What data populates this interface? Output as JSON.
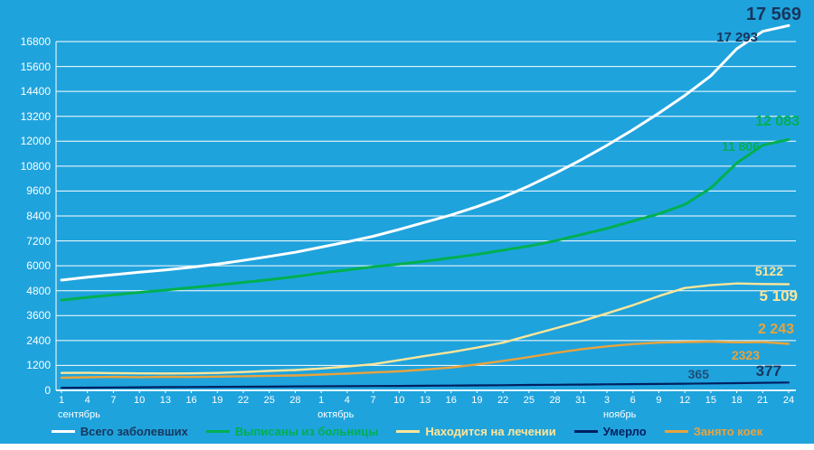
{
  "chart_data": {
    "type": "line",
    "title": "",
    "xlabel": "",
    "ylabel": "",
    "grid": "horizontal",
    "legend_position": "bottom",
    "ylim": [
      0,
      18000
    ],
    "y_ticks": [
      0,
      1200,
      2400,
      3600,
      4800,
      6000,
      7200,
      8400,
      9600,
      10800,
      12000,
      13200,
      14400,
      15600,
      16800
    ],
    "x_tick_labels": [
      "1",
      "4",
      "7",
      "10",
      "13",
      "16",
      "19",
      "22",
      "25",
      "28",
      "1",
      "4",
      "7",
      "10",
      "13",
      "16",
      "19",
      "22",
      "25",
      "28",
      "31",
      "3",
      "6",
      "9",
      "12",
      "15",
      "18",
      "21",
      "24"
    ],
    "month_labels": [
      {
        "label": "сентябрь",
        "start_index": 0
      },
      {
        "label": "октябрь",
        "start_index": 10
      },
      {
        "label": "ноябрь",
        "start_index": 21
      }
    ],
    "colors": {
      "background": "#1FA3DD",
      "grid": "#FFFFFF",
      "axis_text": "#FFFFFF"
    },
    "series": [
      {
        "name": "Всего заболевших",
        "color": "#FFFFFF",
        "legend_text_color": "#17365D",
        "values": [
          5310,
          5450,
          5570,
          5690,
          5800,
          5930,
          6080,
          6260,
          6450,
          6650,
          6900,
          7150,
          7420,
          7750,
          8100,
          8450,
          8850,
          9300,
          9850,
          10450,
          11100,
          11800,
          12550,
          13350,
          14200,
          15150,
          16450,
          17293,
          17569
        ],
        "end_labels": {
          "prev": {
            "text": "17 293",
            "color": "#17365D"
          },
          "last": {
            "text": "17 569",
            "color": "#17365D"
          }
        }
      },
      {
        "name": "Выписаны из больницы",
        "color": "#00B050",
        "legend_text_color": "#00B050",
        "values": [
          4350,
          4480,
          4600,
          4720,
          4830,
          4950,
          5070,
          5200,
          5330,
          5480,
          5650,
          5800,
          5950,
          6080,
          6220,
          6380,
          6550,
          6750,
          6950,
          7200,
          7500,
          7800,
          8150,
          8500,
          8950,
          9750,
          10950,
          11806,
          12083
        ],
        "end_labels": {
          "prev": {
            "text": "11 806",
            "color": "#00B050"
          },
          "last": {
            "text": "12 083",
            "color": "#00B050"
          }
        }
      },
      {
        "name": "Находится на лечении",
        "color": "#FFE699",
        "legend_text_color": "#FFE699",
        "values": [
          840,
          845,
          830,
          820,
          815,
          820,
          840,
          885,
          940,
          980,
          1055,
          1150,
          1260,
          1455,
          1660,
          1840,
          2060,
          2300,
          2640,
          2980,
          3320,
          3710,
          4100,
          4540,
          4930,
          5065,
          5150,
          5122,
          5109
        ],
        "end_labels": {
          "prev": {
            "text": "5122",
            "color": "#FFE699"
          },
          "last": {
            "text": "5 109",
            "color": "#FFE699"
          }
        }
      },
      {
        "name": "Умерло",
        "color": "#002060",
        "legend_text_color": "#002060",
        "values": [
          120,
          130,
          140,
          150,
          155,
          160,
          170,
          175,
          180,
          190,
          195,
          200,
          210,
          215,
          220,
          230,
          240,
          250,
          260,
          270,
          280,
          290,
          300,
          310,
          320,
          335,
          350,
          365,
          377
        ],
        "end_labels": {
          "prev": {
            "text": "365",
            "color": "#1F4E79"
          },
          "last": {
            "text": "377",
            "color": "#17365D"
          }
        }
      },
      {
        "name": "Занято коек",
        "color": "#E8A33D",
        "legend_text_color": "#E8A33D",
        "values": [
          610,
          630,
          650,
          635,
          655,
          645,
          660,
          680,
          700,
          720,
          760,
          810,
          860,
          920,
          1000,
          1100,
          1250,
          1420,
          1600,
          1800,
          1980,
          2120,
          2230,
          2300,
          2323,
          2350,
          2310,
          2323,
          2243
        ],
        "end_labels": {
          "prev": {
            "text": "2323",
            "color": "#E8A33D"
          },
          "last": {
            "text": "2 243",
            "color": "#E8A33D"
          }
        }
      }
    ]
  }
}
